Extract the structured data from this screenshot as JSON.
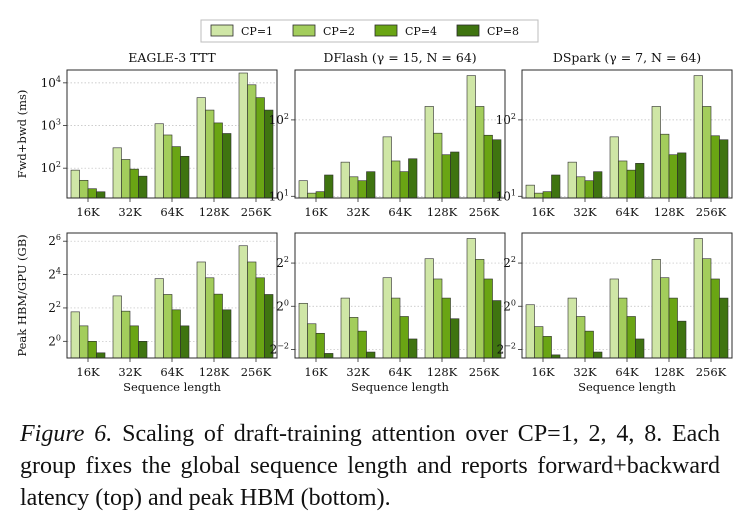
{
  "legend": {
    "labels": [
      "CP=1",
      "CP=2",
      "CP=4",
      "CP=8"
    ],
    "colors": [
      "#cfe6a6",
      "#a3cd5c",
      "#6aa514",
      "#3f7410"
    ]
  },
  "caption": {
    "label": "Figure 6.",
    "text": " Scaling of draft-training attention over CP=1, 2, 4, 8. Each group fixes the global sequence length and reports forward+backward latency (top) and peak HBM (bottom)."
  },
  "chart_data": [
    {
      "type": "bar",
      "title": "EAGLE-3 TTT",
      "row": "latency",
      "yscale": "log10",
      "ylabel": "Fwd+bwd (ms)",
      "xlabel": "",
      "ylim": [
        20,
        20000
      ],
      "yticks": [
        "10^2",
        "10^3",
        "10^4"
      ],
      "categories": [
        "16K",
        "32K",
        "64K",
        "128K",
        "256K"
      ],
      "series": [
        {
          "name": "CP=1",
          "values": [
            90,
            300,
            1100,
            4500,
            17000
          ]
        },
        {
          "name": "CP=2",
          "values": [
            52,
            160,
            600,
            2300,
            9000
          ]
        },
        {
          "name": "CP=4",
          "values": [
            33,
            95,
            320,
            1150,
            4500
          ]
        },
        {
          "name": "CP=8",
          "values": [
            28,
            65,
            190,
            650,
            2300
          ]
        }
      ]
    },
    {
      "type": "bar",
      "title": "DFlash (γ = 15, N = 64)",
      "row": "latency",
      "yscale": "log10",
      "ylabel": "",
      "xlabel": "",
      "ylim": [
        9.5,
        450
      ],
      "yticks": [
        "10^1",
        "10^2"
      ],
      "categories": [
        "16K",
        "32K",
        "64K",
        "128K",
        "256K"
      ],
      "series": [
        {
          "name": "CP=1",
          "values": [
            16,
            28,
            60,
            150,
            380
          ]
        },
        {
          "name": "CP=2",
          "values": [
            11,
            18,
            29,
            67,
            150
          ]
        },
        {
          "name": "CP=4",
          "values": [
            11.5,
            16,
            21,
            35,
            63
          ]
        },
        {
          "name": "CP=8",
          "values": [
            19,
            21,
            31,
            38,
            55
          ]
        }
      ]
    },
    {
      "type": "bar",
      "title": "DSpark (γ = 7, N = 64)",
      "row": "latency",
      "yscale": "log10",
      "ylabel": "",
      "xlabel": "",
      "ylim": [
        9.5,
        450
      ],
      "yticks": [
        "10^1",
        "10^2"
      ],
      "categories": [
        "16K",
        "32K",
        "64K",
        "128K",
        "256K"
      ],
      "series": [
        {
          "name": "CP=1",
          "values": [
            14,
            28,
            60,
            150,
            380
          ]
        },
        {
          "name": "CP=2",
          "values": [
            11,
            18,
            29,
            65,
            150
          ]
        },
        {
          "name": "CP=4",
          "values": [
            11.5,
            16,
            22,
            35,
            62
          ]
        },
        {
          "name": "CP=8",
          "values": [
            19,
            21,
            27,
            37,
            55
          ]
        }
      ]
    },
    {
      "type": "bar",
      "title": "",
      "row": "memory",
      "yscale": "log2",
      "ylabel": "Peak HBM/GPU (GB)",
      "xlabel": "Sequence length",
      "ylim": [
        0.5,
        90
      ],
      "yticks": [
        "2^0",
        "2^2",
        "2^4",
        "2^6"
      ],
      "categories": [
        "16K",
        "32K",
        "64K",
        "128K",
        "256K"
      ],
      "series": [
        {
          "name": "CP=1",
          "values": [
            3.4,
            6.6,
            13.5,
            27,
            53
          ]
        },
        {
          "name": "CP=2",
          "values": [
            1.9,
            3.5,
            7,
            14,
            27
          ]
        },
        {
          "name": "CP=4",
          "values": [
            1.0,
            1.9,
            3.7,
            7.1,
            14
          ]
        },
        {
          "name": "CP=8",
          "values": [
            0.62,
            1.0,
            1.9,
            3.7,
            7
          ]
        }
      ]
    },
    {
      "type": "bar",
      "title": "",
      "row": "memory",
      "yscale": "log2",
      "ylabel": "",
      "xlabel": "Sequence length",
      "ylim": [
        0.19,
        10.5
      ],
      "yticks": [
        "2^-2",
        "2^0",
        "2^2"
      ],
      "categories": [
        "16K",
        "32K",
        "64K",
        "128K",
        "256K"
      ],
      "series": [
        {
          "name": "CP=1",
          "values": [
            1.1,
            1.3,
            2.5,
            4.6,
            8.8
          ]
        },
        {
          "name": "CP=2",
          "values": [
            0.57,
            0.7,
            1.3,
            2.4,
            4.5
          ]
        },
        {
          "name": "CP=4",
          "values": [
            0.42,
            0.45,
            0.72,
            1.3,
            2.4
          ]
        },
        {
          "name": "CP=8",
          "values": [
            0.22,
            0.23,
            0.35,
            0.67,
            1.2
          ]
        }
      ]
    },
    {
      "type": "bar",
      "title": "",
      "row": "memory",
      "yscale": "log2",
      "ylabel": "",
      "xlabel": "Sequence length",
      "ylim": [
        0.19,
        10.5
      ],
      "yticks": [
        "2^-2",
        "2^0",
        "2^2"
      ],
      "categories": [
        "16K",
        "32K",
        "64K",
        "128K",
        "256K"
      ],
      "series": [
        {
          "name": "CP=1",
          "values": [
            1.05,
            1.3,
            2.4,
            4.5,
            8.8
          ]
        },
        {
          "name": "CP=2",
          "values": [
            0.52,
            0.72,
            1.3,
            2.5,
            4.6
          ]
        },
        {
          "name": "CP=4",
          "values": [
            0.38,
            0.45,
            0.72,
            1.3,
            2.4
          ]
        },
        {
          "name": "CP=8",
          "values": [
            0.21,
            0.23,
            0.35,
            0.62,
            1.3
          ]
        }
      ]
    }
  ]
}
